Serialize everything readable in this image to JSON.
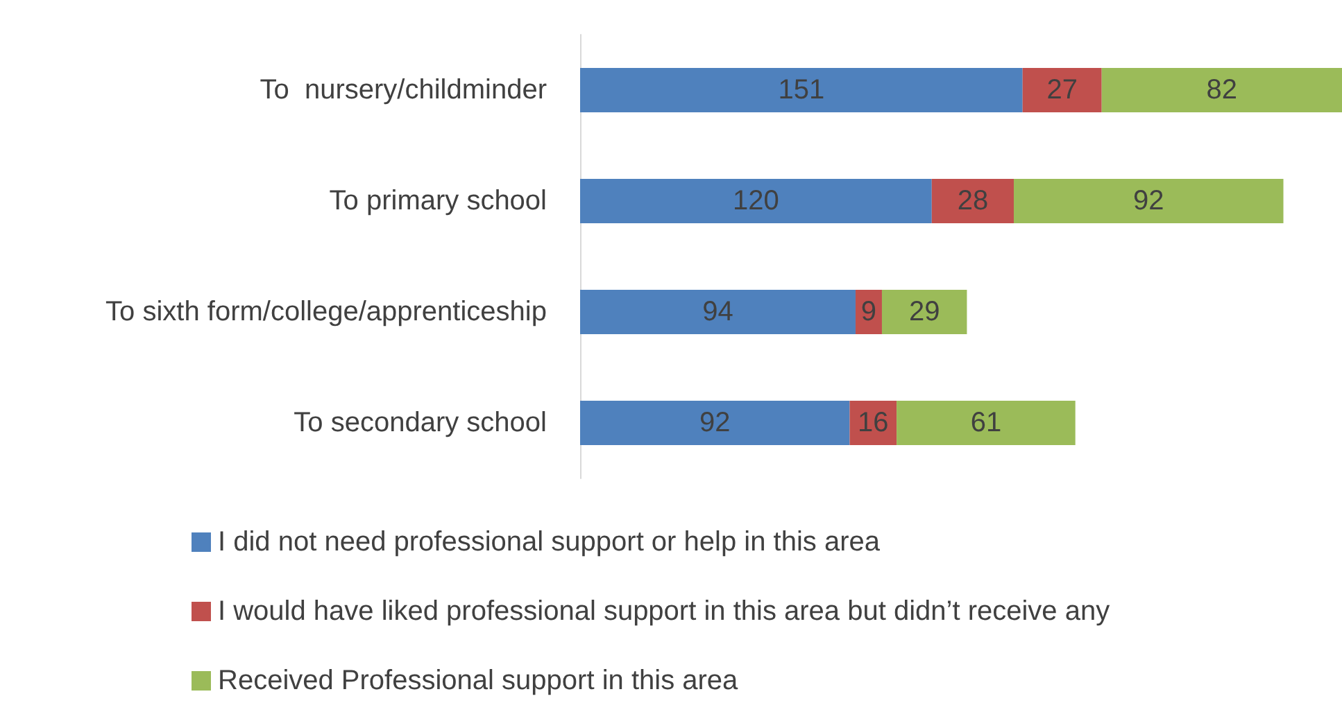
{
  "chart_data": {
    "type": "bar",
    "orientation": "horizontal",
    "stacked": true,
    "data_labels": true,
    "grid": false,
    "legend": "bottom",
    "categories": [
      "To  nursery/childminder",
      "To primary school",
      "To sixth form/college/apprenticeship",
      "To secondary school"
    ],
    "series": [
      {
        "name": "I did not need professional support or help in this area",
        "color": "#4f81bd",
        "values": [
          151,
          120,
          94,
          92
        ]
      },
      {
        "name": "I would have liked professional support in this area but didn’t receive any",
        "color": "#c0504d",
        "values": [
          27,
          28,
          9,
          16
        ]
      },
      {
        "name": "Received Professional support in this area",
        "color": "#9bbb59",
        "values": [
          82,
          92,
          29,
          61
        ]
      }
    ]
  }
}
